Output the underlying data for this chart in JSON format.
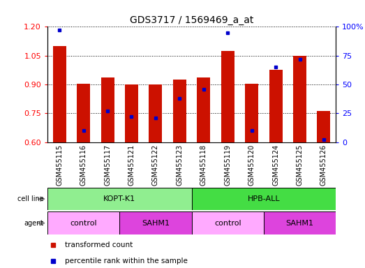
{
  "title": "GDS3717 / 1569469_a_at",
  "samples": [
    "GSM455115",
    "GSM455116",
    "GSM455117",
    "GSM455121",
    "GSM455122",
    "GSM455123",
    "GSM455118",
    "GSM455119",
    "GSM455120",
    "GSM455124",
    "GSM455125",
    "GSM455126"
  ],
  "red_values": [
    1.1,
    0.905,
    0.935,
    0.9,
    0.9,
    0.925,
    0.935,
    1.075,
    0.905,
    0.975,
    1.05,
    0.76
  ],
  "blue_values_pct": [
    97,
    10,
    27,
    22,
    21,
    38,
    46,
    95,
    10,
    65,
    72,
    2
  ],
  "ylim_left": [
    0.6,
    1.2
  ],
  "ylim_right": [
    0,
    100
  ],
  "yticks_left": [
    0.6,
    0.75,
    0.9,
    1.05,
    1.2
  ],
  "yticks_right": [
    0,
    25,
    50,
    75,
    100
  ],
  "cell_line_groups": [
    {
      "label": "KOPT-K1",
      "start": 0,
      "end": 6,
      "color": "#90EE90"
    },
    {
      "label": "HPB-ALL",
      "start": 6,
      "end": 12,
      "color": "#44DD44"
    }
  ],
  "agent_groups": [
    {
      "label": "control",
      "start": 0,
      "end": 3,
      "color": "#FFAAFF"
    },
    {
      "label": "SAHM1",
      "start": 3,
      "end": 6,
      "color": "#DD44DD"
    },
    {
      "label": "control",
      "start": 6,
      "end": 9,
      "color": "#FFAAFF"
    },
    {
      "label": "SAHM1",
      "start": 9,
      "end": 12,
      "color": "#DD44DD"
    }
  ],
  "bar_color": "#CC1100",
  "dot_color": "#0000CC",
  "bar_width": 0.55,
  "baseline": 0.6,
  "legend_items": [
    {
      "label": "transformed count",
      "color": "#CC1100"
    },
    {
      "label": "percentile rank within the sample",
      "color": "#0000CC"
    }
  ],
  "bg_gray": "#CCCCCC"
}
